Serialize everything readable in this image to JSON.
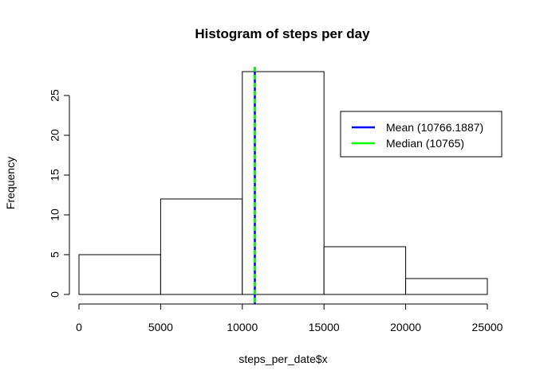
{
  "chart_data": {
    "type": "bar",
    "title": "Histogram of steps per day",
    "xlabel": "steps_per_date$x",
    "ylabel": "Frequency",
    "bins": [
      {
        "from": 0,
        "to": 5000,
        "count": 5
      },
      {
        "from": 5000,
        "to": 10000,
        "count": 12
      },
      {
        "from": 10000,
        "to": 15000,
        "count": 28
      },
      {
        "from": 15000,
        "to": 20000,
        "count": 6
      },
      {
        "from": 20000,
        "to": 25000,
        "count": 2
      }
    ],
    "xlim": [
      0,
      25000
    ],
    "ylim": [
      0,
      28
    ],
    "x_ticks": [
      "0",
      "5000",
      "10000",
      "15000",
      "20000",
      "25000"
    ],
    "y_ticks": [
      "0",
      "5",
      "10",
      "15",
      "20",
      "25"
    ],
    "reference_lines": [
      {
        "name": "Mean (10766.1887)",
        "value": 10766.1887,
        "color": "#0000ff",
        "dash": "solid"
      },
      {
        "name": "Median (10765)",
        "value": 10765,
        "color": "#00ff00",
        "dash": "dashed"
      }
    ],
    "legend": {
      "position": "top-right"
    },
    "grid": false,
    "bar_fill": "#ffffff",
    "bar_stroke": "#000000"
  }
}
